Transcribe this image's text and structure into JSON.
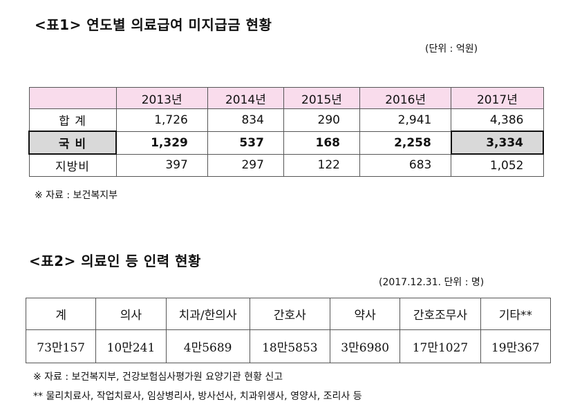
{
  "table1": {
    "title": "<표1> 연도별 의료급여 미지급금 현황",
    "unit": "(단위 : 억원)",
    "headers": [
      "2013년",
      "2014년",
      "2015년",
      "2016년",
      "2017년"
    ],
    "rows": [
      {
        "label": "합 계",
        "values": [
          "1,726",
          "834",
          "290",
          "2,941",
          "4,386"
        ]
      },
      {
        "label": "국 비",
        "values": [
          "1,329",
          "537",
          "168",
          "2,258",
          "3,334"
        ]
      },
      {
        "label": "지방비",
        "values": [
          "397",
          "297",
          "122",
          "683",
          "1,052"
        ]
      }
    ],
    "source": "※ 자료 : 보건복지부"
  },
  "table2": {
    "title": "<표2> 의료인 등 인력 현황",
    "unit": "(2017.12.31. 단위 : 명)",
    "headers": [
      "계",
      "의사",
      "치과/한의사",
      "간호사",
      "약사",
      "간호조무사",
      "기타**"
    ],
    "values": [
      "73만157",
      "10만241",
      "4만5689",
      "18만5853",
      "3만6980",
      "17만1027",
      "19만367"
    ],
    "source": "※ 자료 : 보건복지부, 건강보험심사평가원 요양기관 현황 신고",
    "footnote": "** 물리치료사, 작업치료사, 임상병리사, 방사선사, 치과위생사, 영양사, 조리사 등"
  }
}
